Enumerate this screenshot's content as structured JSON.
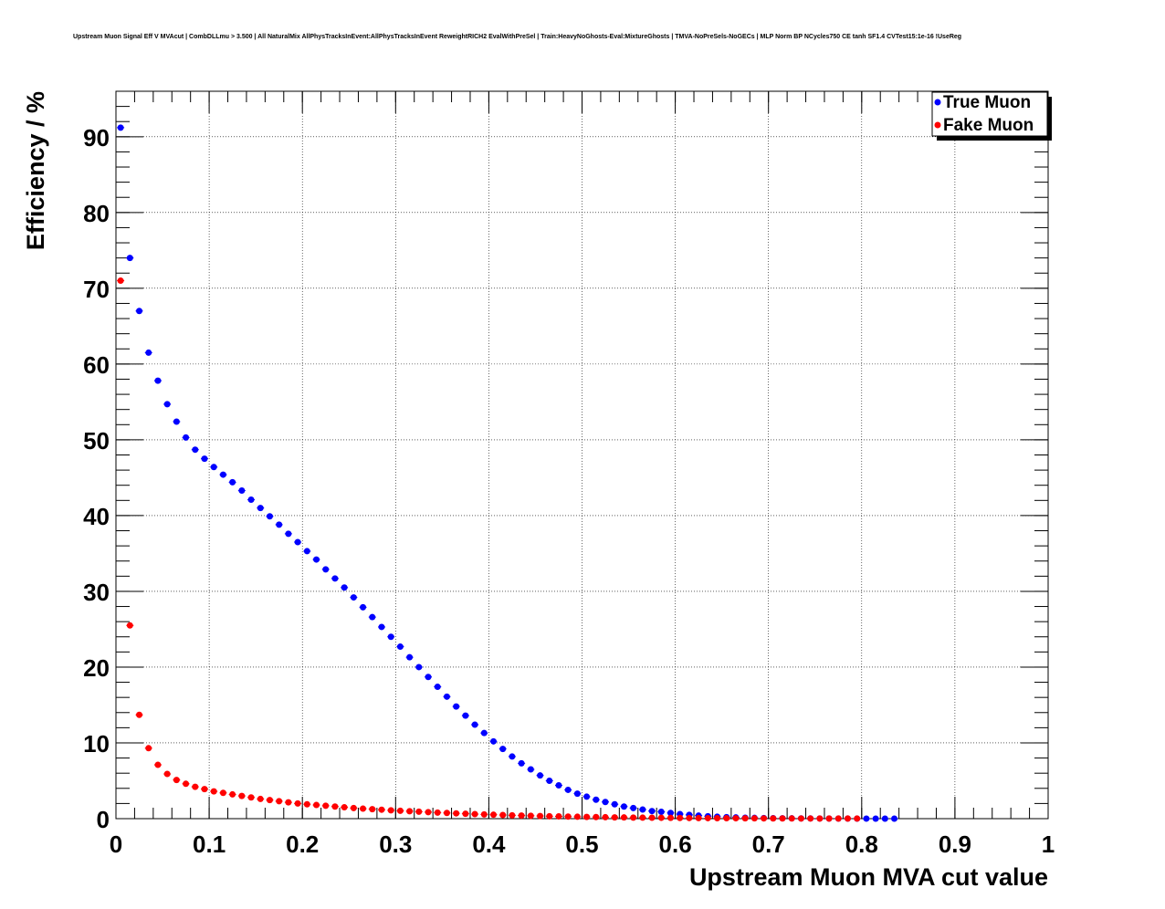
{
  "chart_data": {
    "type": "scatter",
    "title": "Upstream Muon Signal Eff V MVAcut | CombDLLmu > 3.500 | All NaturalMix AllPhysTracksInEvent:AllPhysTracksInEvent ReweightRICH2 EvalWithPreSel | Train:HeavyNoGhosts-Eval:MixtureGhosts | TMVA-NoPreSels-NoGECs | MLP Norm BP NCycles750 CE tanh SF1.4 CVTest15:1e-16 !UseReg",
    "xlabel": "Upstream Muon MVA cut value",
    "ylabel": "Efficiency / %",
    "xlim": [
      0,
      1
    ],
    "ylim": [
      0,
      96
    ],
    "grid": true,
    "legend_position": "top-right",
    "x_ticks": [
      "0",
      "0.1",
      "0.2",
      "0.3",
      "0.4",
      "0.5",
      "0.6",
      "0.7",
      "0.8",
      "0.9",
      "1"
    ],
    "y_ticks": [
      "0",
      "10",
      "20",
      "30",
      "40",
      "50",
      "60",
      "70",
      "80",
      "90"
    ],
    "series": [
      {
        "name": "True Muon",
        "color": "#0000ff",
        "x": [
          0.005,
          0.015,
          0.025,
          0.035,
          0.045,
          0.055,
          0.065,
          0.075,
          0.085,
          0.095,
          0.105,
          0.115,
          0.125,
          0.135,
          0.145,
          0.155,
          0.165,
          0.175,
          0.185,
          0.195,
          0.205,
          0.215,
          0.225,
          0.235,
          0.245,
          0.255,
          0.265,
          0.275,
          0.285,
          0.295,
          0.305,
          0.315,
          0.325,
          0.335,
          0.345,
          0.355,
          0.365,
          0.375,
          0.385,
          0.395,
          0.405,
          0.415,
          0.425,
          0.435,
          0.445,
          0.455,
          0.465,
          0.475,
          0.485,
          0.495,
          0.505,
          0.515,
          0.525,
          0.535,
          0.545,
          0.555,
          0.565,
          0.575,
          0.585,
          0.595,
          0.605,
          0.615,
          0.625,
          0.635,
          0.645,
          0.655,
          0.665,
          0.675,
          0.685,
          0.695,
          0.705,
          0.715,
          0.725,
          0.735,
          0.745,
          0.755,
          0.765,
          0.775,
          0.785,
          0.795,
          0.805,
          0.815,
          0.825,
          0.835
        ],
        "y": [
          91.2,
          74.0,
          67.0,
          61.5,
          57.8,
          54.7,
          52.4,
          50.3,
          48.7,
          47.5,
          46.4,
          45.4,
          44.4,
          43.3,
          42.1,
          41.0,
          39.9,
          38.8,
          37.6,
          36.5,
          35.3,
          34.2,
          32.9,
          31.7,
          30.5,
          29.2,
          27.9,
          26.6,
          25.3,
          24.0,
          22.7,
          21.3,
          20.0,
          18.7,
          17.4,
          16.1,
          14.8,
          13.6,
          12.4,
          11.3,
          10.2,
          9.2,
          8.2,
          7.3,
          6.5,
          5.7,
          5.0,
          4.4,
          3.8,
          3.3,
          2.9,
          2.5,
          2.2,
          1.9,
          1.6,
          1.4,
          1.2,
          1.0,
          0.9,
          0.75,
          0.6,
          0.5,
          0.4,
          0.32,
          0.26,
          0.2,
          0.16,
          0.12,
          0.1,
          0.08,
          0.06,
          0.05,
          0.04,
          0.03,
          0.025,
          0.02,
          0.015,
          0.01,
          0.008,
          0.006,
          0.005,
          0.004,
          0.003,
          0.002
        ]
      },
      {
        "name": "Fake Muon",
        "color": "#ff0000",
        "x": [
          0.005,
          0.015,
          0.025,
          0.035,
          0.045,
          0.055,
          0.065,
          0.075,
          0.085,
          0.095,
          0.105,
          0.115,
          0.125,
          0.135,
          0.145,
          0.155,
          0.165,
          0.175,
          0.185,
          0.195,
          0.205,
          0.215,
          0.225,
          0.235,
          0.245,
          0.255,
          0.265,
          0.275,
          0.285,
          0.295,
          0.305,
          0.315,
          0.325,
          0.335,
          0.345,
          0.355,
          0.365,
          0.375,
          0.385,
          0.395,
          0.405,
          0.415,
          0.425,
          0.435,
          0.445,
          0.455,
          0.465,
          0.475,
          0.485,
          0.495,
          0.505,
          0.515,
          0.525,
          0.535,
          0.545,
          0.555,
          0.565,
          0.575,
          0.585,
          0.595,
          0.605,
          0.615,
          0.625,
          0.635,
          0.645,
          0.655,
          0.665,
          0.675,
          0.685,
          0.695,
          0.705,
          0.715,
          0.725,
          0.735,
          0.745,
          0.755,
          0.765,
          0.775,
          0.785,
          0.795
        ],
        "y": [
          71.0,
          25.5,
          13.7,
          9.3,
          7.1,
          5.9,
          5.1,
          4.6,
          4.2,
          3.9,
          3.6,
          3.4,
          3.2,
          3.0,
          2.8,
          2.6,
          2.45,
          2.3,
          2.15,
          2.0,
          1.9,
          1.8,
          1.7,
          1.6,
          1.5,
          1.4,
          1.32,
          1.25,
          1.18,
          1.1,
          1.04,
          0.98,
          0.92,
          0.86,
          0.8,
          0.75,
          0.7,
          0.65,
          0.6,
          0.56,
          0.52,
          0.48,
          0.44,
          0.41,
          0.38,
          0.35,
          0.32,
          0.3,
          0.27,
          0.25,
          0.23,
          0.21,
          0.19,
          0.17,
          0.16,
          0.14,
          0.13,
          0.12,
          0.11,
          0.1,
          0.09,
          0.08,
          0.07,
          0.065,
          0.06,
          0.055,
          0.05,
          0.045,
          0.04,
          0.035,
          0.03,
          0.028,
          0.025,
          0.022,
          0.02,
          0.018,
          0.016,
          0.014,
          0.012,
          0.01
        ]
      }
    ]
  }
}
